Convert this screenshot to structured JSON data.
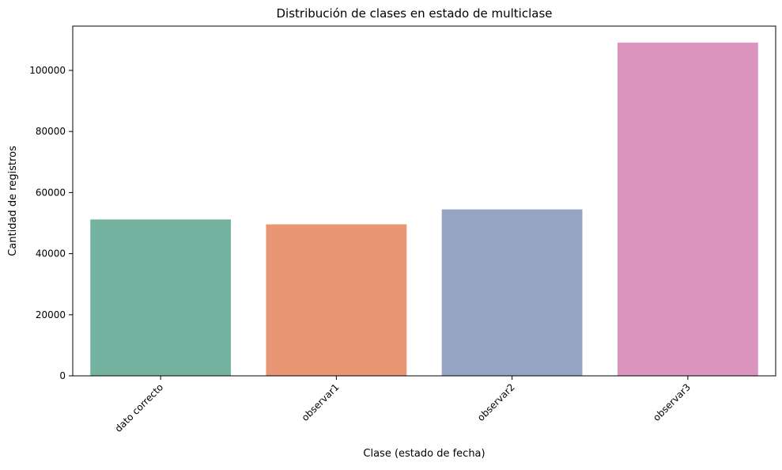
{
  "chart_data": {
    "type": "bar",
    "title": "Distribución de clases en estado de multiclase",
    "xlabel": "Clase (estado de fecha)",
    "ylabel": "Cantidad de registros",
    "categories": [
      "dato correcto",
      "observar1",
      "observar2",
      "observar3"
    ],
    "values": [
      51200,
      49600,
      54500,
      109100
    ],
    "colors": [
      "#73b39f",
      "#e89674",
      "#95a4c2",
      "#da94bd"
    ],
    "ylim": [
      0,
      114500
    ],
    "yticks": [
      0,
      20000,
      40000,
      60000,
      80000,
      100000
    ],
    "ytick_labels": [
      "0",
      "20000",
      "40000",
      "60000",
      "80000",
      "100000"
    ],
    "x_tick_rotation": "45 degrees",
    "grid": false,
    "legend": "none"
  }
}
